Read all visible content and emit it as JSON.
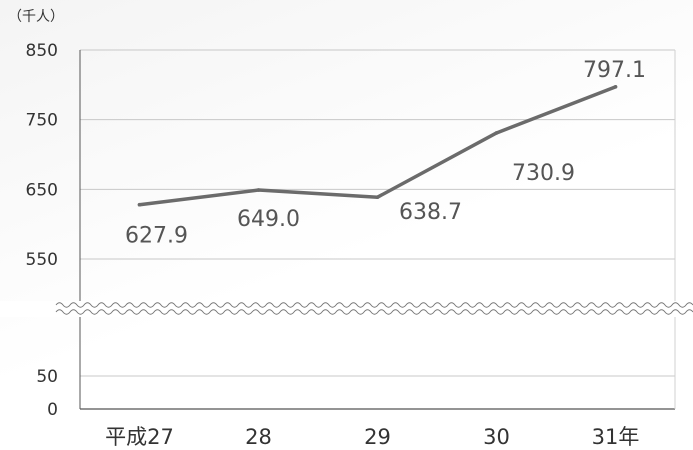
{
  "chart_data": {
    "type": "line",
    "unit_label": "（千人）",
    "categories": [
      "平成27",
      "28",
      "29",
      "30",
      "31年"
    ],
    "values": [
      627.9,
      649.0,
      638.7,
      730.9,
      797.1
    ],
    "value_labels": [
      "627.9",
      "649.0",
      "638.7",
      "730.9",
      "797.1"
    ],
    "y_ticks_upper": [
      "550",
      "650",
      "750",
      "850"
    ],
    "y_ticks_lower": [
      "0",
      "50"
    ],
    "ylim_upper": [
      550,
      850
    ],
    "ylim_lower": [
      0,
      50
    ],
    "axis_break": true,
    "grid": true,
    "line_color": "#6b6b6b",
    "grid_color": "#c8c8c8",
    "axis_color": "#555555"
  }
}
